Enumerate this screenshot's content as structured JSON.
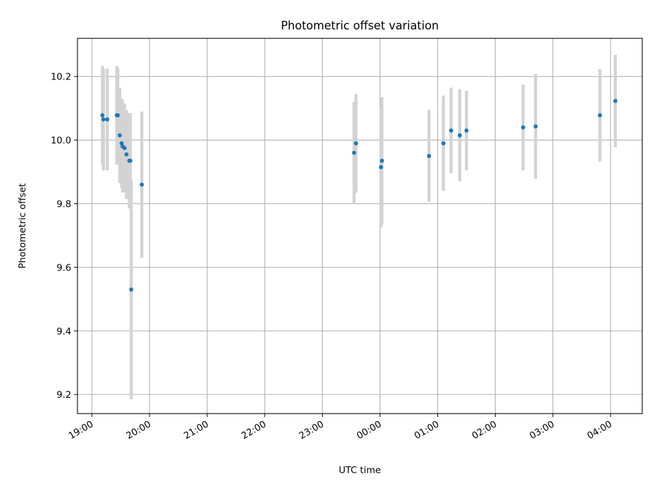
{
  "chart_data": {
    "type": "scatter",
    "title": "Photometric offset variation",
    "xlabel": "UTC time",
    "ylabel": "Photometric offset",
    "x_ticks": [
      "19:00",
      "20:00",
      "21:00",
      "22:00",
      "23:00",
      "00:00",
      "01:00",
      "02:00",
      "03:00",
      "04:00"
    ],
    "y_ticks": [
      "9.2",
      "9.4",
      "9.6",
      "9.8",
      "10.0",
      "10.2"
    ],
    "x_range_hours": [
      -0.25,
      9.55
    ],
    "xlim": [
      "18:45",
      "04:33"
    ],
    "ylim": [
      9.14,
      10.32
    ],
    "grid": true,
    "colors": {
      "points": "#1f77b4",
      "errorbars": "#d3d3d3"
    },
    "points": [
      {
        "x": "19:11",
        "y": 10.078,
        "err": 0.155
      },
      {
        "x": "19:12",
        "y": 10.065,
        "err": 0.16
      },
      {
        "x": "19:16",
        "y": 10.065,
        "err": 0.16
      },
      {
        "x": "19:26",
        "y": 10.078,
        "err": 0.155
      },
      {
        "x": "19:27",
        "y": 10.078,
        "err": 0.15
      },
      {
        "x": "19:29",
        "y": 10.015,
        "err": 0.15
      },
      {
        "x": "19:31",
        "y": 9.99,
        "err": 0.14
      },
      {
        "x": "19:32",
        "y": 9.98,
        "err": 0.145
      },
      {
        "x": "19:34",
        "y": 9.975,
        "err": 0.14
      },
      {
        "x": "19:36",
        "y": 9.955,
        "err": 0.14
      },
      {
        "x": "19:39",
        "y": 9.935,
        "err": 0.15
      },
      {
        "x": "19:40",
        "y": 9.935,
        "err": 0.15
      },
      {
        "x": "19:41",
        "y": 9.53,
        "err": 0.345
      },
      {
        "x": "19:52",
        "y": 9.86,
        "err": 0.23
      },
      {
        "x": "23:33",
        "y": 9.96,
        "err": 0.16
      },
      {
        "x": "23:35",
        "y": 9.99,
        "err": 0.155
      },
      {
        "x": "00:01",
        "y": 9.915,
        "err": 0.19
      },
      {
        "x": "00:02",
        "y": 9.935,
        "err": 0.2
      },
      {
        "x": "00:51",
        "y": 9.95,
        "err": 0.145
      },
      {
        "x": "01:06",
        "y": 9.99,
        "err": 0.15
      },
      {
        "x": "01:14",
        "y": 10.03,
        "err": 0.135
      },
      {
        "x": "01:23",
        "y": 10.015,
        "err": 0.145
      },
      {
        "x": "01:30",
        "y": 10.03,
        "err": 0.125
      },
      {
        "x": "02:29",
        "y": 10.04,
        "err": 0.135
      },
      {
        "x": "02:42",
        "y": 10.043,
        "err": 0.165
      },
      {
        "x": "03:49",
        "y": 10.078,
        "err": 0.145
      },
      {
        "x": "04:05",
        "y": 10.123,
        "err": 0.145
      }
    ]
  }
}
